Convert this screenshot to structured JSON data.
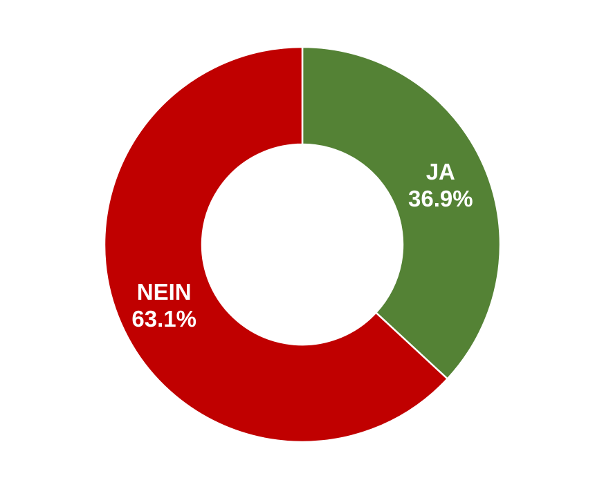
{
  "chart_data": {
    "type": "pie",
    "donut": true,
    "categories": [
      "JA",
      "NEIN"
    ],
    "values": [
      36.9,
      63.1
    ],
    "value_labels": [
      "36.9%",
      "63.1%"
    ],
    "colors": [
      "#548235",
      "#C00000"
    ],
    "title": "",
    "legend": "none"
  }
}
